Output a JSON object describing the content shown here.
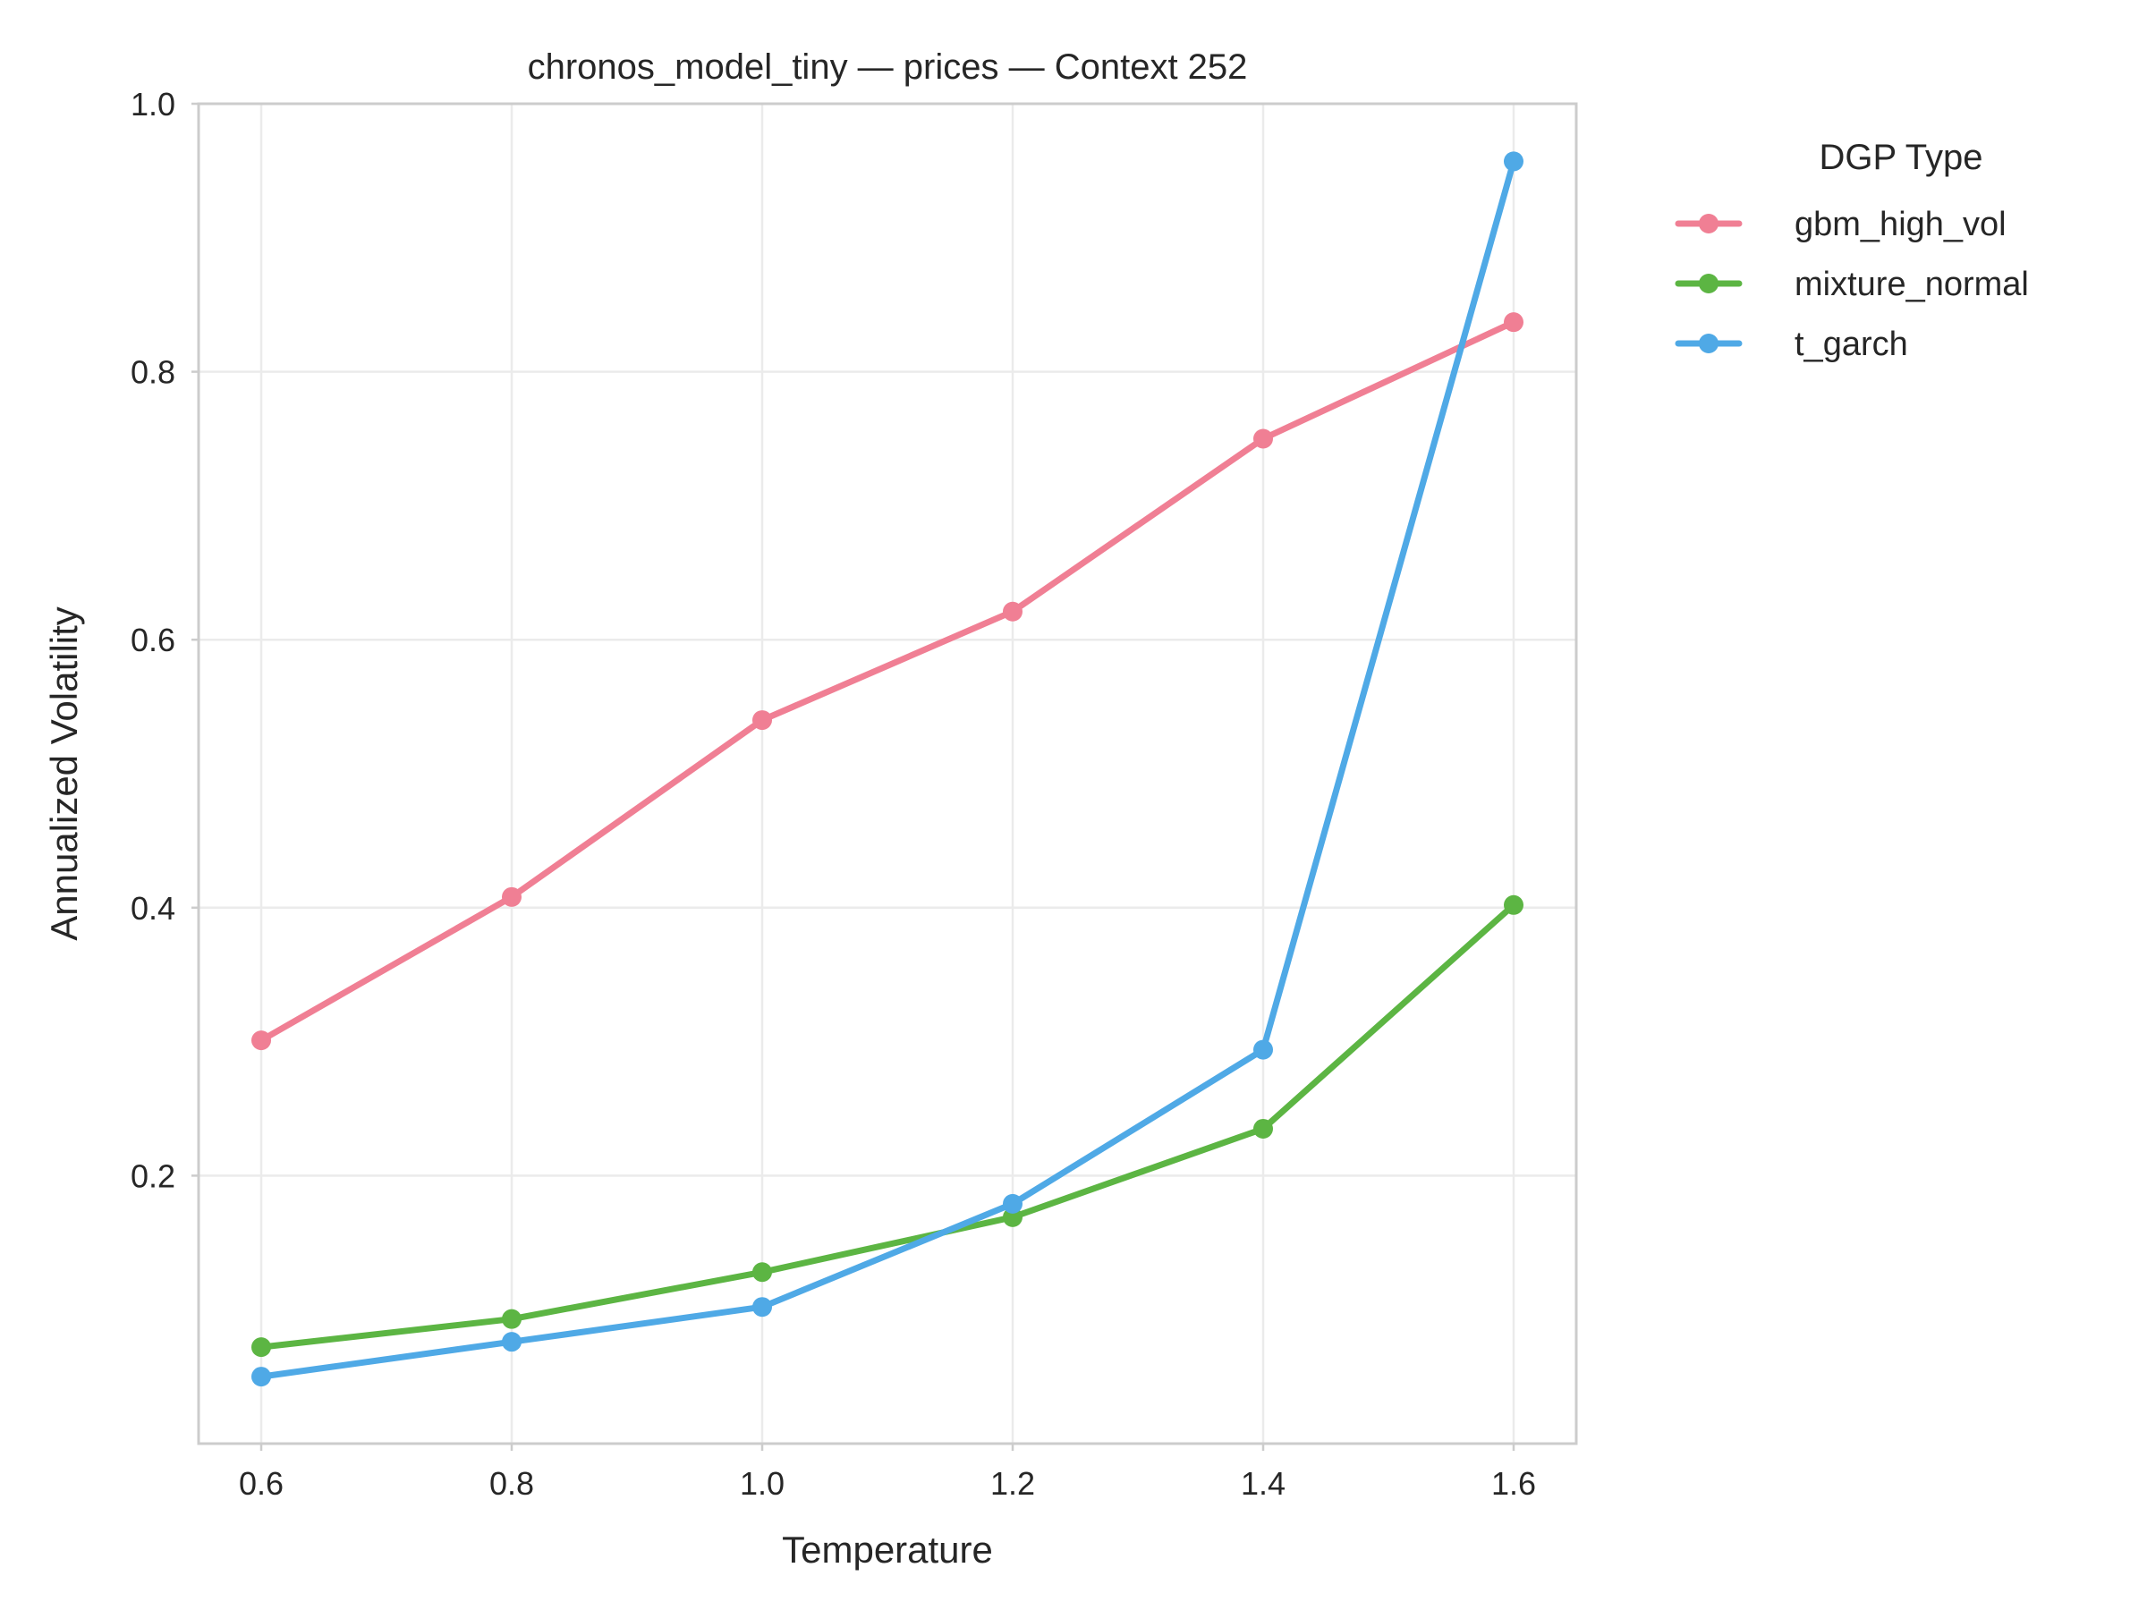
{
  "chart_data": {
    "type": "line",
    "title": "chronos_model_tiny — prices — Context 252",
    "xlabel": "Temperature",
    "ylabel": "Annualized Volatility",
    "x": [
      0.6,
      0.8,
      1.0,
      1.2,
      1.4,
      1.6
    ],
    "x_ticks": [
      "0.6",
      "0.8",
      "1.0",
      "1.2",
      "1.4",
      "1.6"
    ],
    "y_ticks": [
      "0.2",
      "0.4",
      "0.6",
      "0.8",
      "1.0"
    ],
    "xlim": [
      0.55,
      1.65
    ],
    "ylim": [
      0.0,
      1.0
    ],
    "grid": true,
    "legend": {
      "title": "DGP Type",
      "placement": "outside-right-top"
    },
    "series": [
      {
        "name": "gbm_high_vol",
        "color": "#f07f94",
        "values": [
          0.301,
          0.408,
          0.54,
          0.621,
          0.75,
          0.837
        ]
      },
      {
        "name": "mixture_normal",
        "color": "#5cb543",
        "values": [
          0.072,
          0.093,
          0.128,
          0.169,
          0.235,
          0.402
        ]
      },
      {
        "name": "t_garch",
        "color": "#4fa9e6",
        "values": [
          0.05,
          0.076,
          0.102,
          0.179,
          0.294,
          0.957
        ]
      }
    ]
  }
}
